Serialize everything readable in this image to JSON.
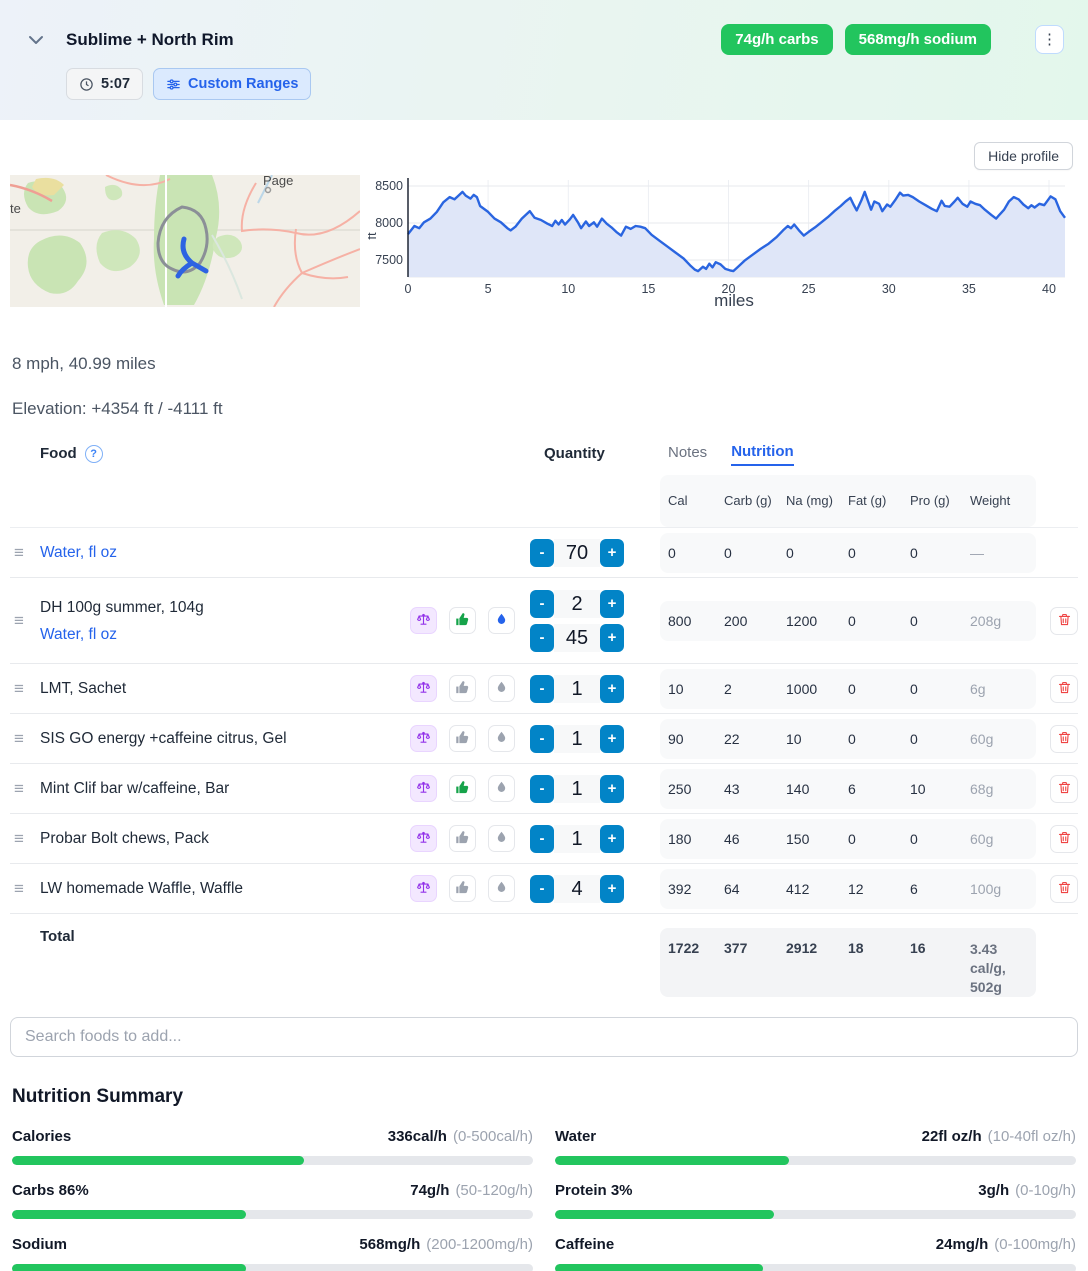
{
  "header": {
    "title": "Sublime + North Rim",
    "duration": "5:07",
    "custom_ranges_label": "Custom Ranges",
    "badge_color": "#22c55e",
    "badges": [
      {
        "label": "74g/h carbs"
      },
      {
        "label": "568mg/h sodium"
      }
    ],
    "menu_icon": "kebab-vertical"
  },
  "profile": {
    "hide_button_label": "Hide profile",
    "map": {
      "city_label": "Page",
      "edge_label": "te"
    }
  },
  "chart_data": {
    "type": "area",
    "title": "Elevation profile",
    "xlabel": "miles",
    "ylabel": "ft",
    "x_ticks": [
      0,
      5,
      10,
      15,
      20,
      25,
      30,
      35,
      40
    ],
    "y_ticks": [
      7500,
      8000,
      8500
    ],
    "x_range": [
      0,
      41
    ],
    "y_range": [
      7270,
      8560
    ],
    "line_color": "#2a65e0",
    "fill_color": "#dfe6f8",
    "points": [
      [
        0,
        7850
      ],
      [
        0.4,
        7960
      ],
      [
        0.7,
        7930
      ],
      [
        1,
        8010
      ],
      [
        1.4,
        8060
      ],
      [
        1.8,
        8150
      ],
      [
        2.2,
        8280
      ],
      [
        2.6,
        8350
      ],
      [
        2.9,
        8320
      ],
      [
        3.1,
        8360
      ],
      [
        3.4,
        8420
      ],
      [
        3.6,
        8370
      ],
      [
        3.9,
        8330
      ],
      [
        4.1,
        8380
      ],
      [
        4.3,
        8350
      ],
      [
        4.5,
        8230
      ],
      [
        5,
        8150
      ],
      [
        5.4,
        8060
      ],
      [
        5.8,
        8010
      ],
      [
        6.2,
        7930
      ],
      [
        6.4,
        7900
      ],
      [
        6.7,
        7950
      ],
      [
        7.1,
        8060
      ],
      [
        7.4,
        8120
      ],
      [
        7.6,
        8160
      ],
      [
        7.9,
        8070
      ],
      [
        8.3,
        8040
      ],
      [
        8.7,
        7990
      ],
      [
        9,
        7960
      ],
      [
        9.2,
        8030
      ],
      [
        9.4,
        7980
      ],
      [
        9.6,
        8040
      ],
      [
        9.8,
        7980
      ],
      [
        10.1,
        8050
      ],
      [
        10.3,
        8110
      ],
      [
        10.6,
        8010
      ],
      [
        10.8,
        7930
      ],
      [
        11.1,
        8020
      ],
      [
        11.3,
        7960
      ],
      [
        11.6,
        8010
      ],
      [
        11.8,
        7950
      ],
      [
        12.1,
        8060
      ],
      [
        12.4,
        7990
      ],
      [
        12.7,
        7940
      ],
      [
        13,
        7880
      ],
      [
        13.3,
        7830
      ],
      [
        13.6,
        7950
      ],
      [
        13.9,
        7920
      ],
      [
        14.2,
        7960
      ],
      [
        14.5,
        7950
      ],
      [
        14.8,
        7930
      ],
      [
        15.2,
        7840
      ],
      [
        15.7,
        7760
      ],
      [
        16.2,
        7680
      ],
      [
        16.7,
        7600
      ],
      [
        17.2,
        7520
      ],
      [
        17.6,
        7430
      ],
      [
        17.9,
        7370
      ],
      [
        18.1,
        7350
      ],
      [
        18.4,
        7410
      ],
      [
        18.6,
        7380
      ],
      [
        18.8,
        7450
      ],
      [
        19,
        7400
      ],
      [
        19.2,
        7470
      ],
      [
        19.5,
        7440
      ],
      [
        19.8,
        7380
      ],
      [
        20.1,
        7360
      ],
      [
        20.3,
        7350
      ],
      [
        20.6,
        7410
      ],
      [
        21,
        7490
      ],
      [
        21.5,
        7570
      ],
      [
        22,
        7650
      ],
      [
        22.5,
        7720
      ],
      [
        23,
        7810
      ],
      [
        23.4,
        7900
      ],
      [
        23.7,
        7960
      ],
      [
        23.9,
        7930
      ],
      [
        24.1,
        7980
      ],
      [
        24.4,
        7900
      ],
      [
        24.7,
        7830
      ],
      [
        25,
        7880
      ],
      [
        25.4,
        7940
      ],
      [
        25.8,
        8010
      ],
      [
        26.2,
        8080
      ],
      [
        26.6,
        8160
      ],
      [
        27,
        8230
      ],
      [
        27.3,
        8290
      ],
      [
        27.6,
        8340
      ],
      [
        27.8,
        8250
      ],
      [
        28,
        8170
      ],
      [
        28.3,
        8310
      ],
      [
        28.5,
        8420
      ],
      [
        28.7,
        8300
      ],
      [
        28.9,
        8180
      ],
      [
        29.1,
        8290
      ],
      [
        29.4,
        8260
      ],
      [
        29.6,
        8160
      ],
      [
        29.9,
        8250
      ],
      [
        30.1,
        8220
      ],
      [
        30.4,
        8310
      ],
      [
        30.7,
        8410
      ],
      [
        30.9,
        8370
      ],
      [
        31.2,
        8380
      ],
      [
        31.5,
        8350
      ],
      [
        31.9,
        8290
      ],
      [
        32.3,
        8240
      ],
      [
        32.7,
        8190
      ],
      [
        33,
        8160
      ],
      [
        33.3,
        8300
      ],
      [
        33.5,
        8230
      ],
      [
        33.8,
        8220
      ],
      [
        34.1,
        8290
      ],
      [
        34.3,
        8340
      ],
      [
        34.6,
        8260
      ],
      [
        34.9,
        8220
      ],
      [
        35.1,
        8290
      ],
      [
        35.4,
        8260
      ],
      [
        35.7,
        8240
      ],
      [
        36,
        8180
      ],
      [
        36.4,
        8110
      ],
      [
        36.7,
        8060
      ],
      [
        36.9,
        8110
      ],
      [
        37.2,
        8180
      ],
      [
        37.5,
        8290
      ],
      [
        37.8,
        8350
      ],
      [
        38.1,
        8320
      ],
      [
        38.4,
        8250
      ],
      [
        38.7,
        8200
      ],
      [
        38.9,
        8240
      ],
      [
        39.1,
        8210
      ],
      [
        39.4,
        8260
      ],
      [
        39.7,
        8240
      ],
      [
        39.9,
        8300
      ],
      [
        40.1,
        8360
      ],
      [
        40.4,
        8320
      ],
      [
        40.7,
        8160
      ],
      [
        41,
        8070
      ]
    ]
  },
  "stats": {
    "pace": "8 mph, 40.99 miles",
    "elevation": "Elevation: +4354 ft / -4111 ft"
  },
  "food_table": {
    "food_header": "Food",
    "quantity_header": "Quantity",
    "tabs": [
      {
        "label": "Notes",
        "active": false
      },
      {
        "label": "Nutrition",
        "active": true
      }
    ],
    "columns": [
      "Cal",
      "Carb (g)",
      "Na (mg)",
      "Fat (g)",
      "Pro (g)",
      "Weight"
    ],
    "rows": [
      {
        "names": [
          {
            "text": "Water, fl oz",
            "link": true
          }
        ],
        "icons": null,
        "quantities": [
          "70"
        ],
        "cal": "0",
        "carb": "0",
        "na": "0",
        "fat": "0",
        "pro": "0",
        "weight": "—",
        "deletable": false
      },
      {
        "names": [
          {
            "text": "DH 100g summer, 104g",
            "link": false
          },
          {
            "text": "Water, fl oz",
            "link": true
          }
        ],
        "icons": {
          "thumb": "green",
          "drop": "blue"
        },
        "quantities": [
          "2",
          "45"
        ],
        "cal": "800",
        "carb": "200",
        "na": "1200",
        "fat": "0",
        "pro": "0",
        "weight": "208g",
        "deletable": true
      },
      {
        "names": [
          {
            "text": "LMT, Sachet",
            "link": false
          }
        ],
        "icons": {
          "thumb": "gray",
          "drop": "gray"
        },
        "quantities": [
          "1"
        ],
        "cal": "10",
        "carb": "2",
        "na": "1000",
        "fat": "0",
        "pro": "0",
        "weight": "6g",
        "deletable": true
      },
      {
        "names": [
          {
            "text": "SIS GO energy +caffeine citrus, Gel",
            "link": false
          }
        ],
        "icons": {
          "thumb": "gray",
          "drop": "gray"
        },
        "quantities": [
          "1"
        ],
        "cal": "90",
        "carb": "22",
        "na": "10",
        "fat": "0",
        "pro": "0",
        "weight": "60g",
        "deletable": true
      },
      {
        "names": [
          {
            "text": "Mint Clif bar w/caffeine, Bar",
            "link": false
          }
        ],
        "icons": {
          "thumb": "green",
          "drop": "gray"
        },
        "quantities": [
          "1"
        ],
        "cal": "250",
        "carb": "43",
        "na": "140",
        "fat": "6",
        "pro": "10",
        "weight": "68g",
        "deletable": true
      },
      {
        "names": [
          {
            "text": "Probar Bolt chews, Pack",
            "link": false
          }
        ],
        "icons": {
          "thumb": "gray",
          "drop": "gray"
        },
        "quantities": [
          "1"
        ],
        "cal": "180",
        "carb": "46",
        "na": "150",
        "fat": "0",
        "pro": "0",
        "weight": "60g",
        "deletable": true
      },
      {
        "names": [
          {
            "text": "LW homemade Waffle, Waffle",
            "link": false
          }
        ],
        "icons": {
          "thumb": "gray",
          "drop": "gray"
        },
        "quantities": [
          "4"
        ],
        "cal": "392",
        "carb": "64",
        "na": "412",
        "fat": "12",
        "pro": "6",
        "weight": "100g",
        "deletable": true
      }
    ],
    "total": {
      "label": "Total",
      "cal": "1722",
      "carb": "377",
      "na": "2912",
      "fat": "18",
      "pro": "16",
      "weight": "3.43 cal/g, 502g"
    }
  },
  "search": {
    "placeholder": "Search foods to add..."
  },
  "summary": {
    "title": "Nutrition Summary",
    "bar_color": "#22c55e",
    "items": [
      {
        "label": "Calories",
        "value": "336cal/h",
        "range": "(0-500cal/h)",
        "fill_pct": 56
      },
      {
        "label": "Water",
        "value": "22fl oz/h",
        "range": "(10-40fl oz/h)",
        "fill_pct": 45
      },
      {
        "label": "Carbs 86%",
        "value": "74g/h",
        "range": "(50-120g/h)",
        "fill_pct": 45
      },
      {
        "label": "Protein 3%",
        "value": "3g/h",
        "range": "(0-10g/h)",
        "fill_pct": 42
      },
      {
        "label": "Sodium",
        "value": "568mg/h",
        "range": "(200-1200mg/h)",
        "fill_pct": 45
      },
      {
        "label": "Caffeine",
        "value": "24mg/h",
        "range": "(0-100mg/h)",
        "fill_pct": 40
      }
    ]
  }
}
